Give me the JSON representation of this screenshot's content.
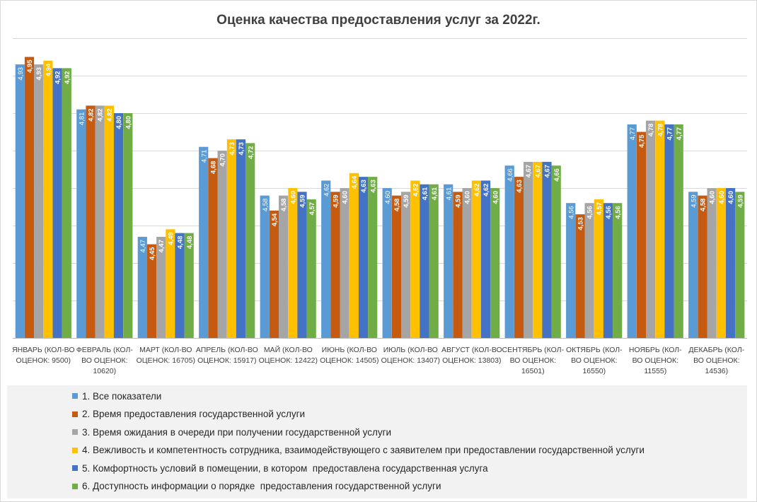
{
  "chart_data": {
    "type": "bar",
    "title": "Оценка качества предоставления услуг за 2022г.",
    "xlabel": "",
    "ylabel": "",
    "ylim": [
      4.2,
      5.0
    ],
    "grid": true,
    "legend_position": "bottom",
    "categories": [
      [
        "ЯНВАРЬ (КОЛ-ВО",
        "ОЦЕНОК: 9500)"
      ],
      [
        "ФЕВРАЛЬ (КОЛ-",
        "ВО ОЦЕНОК:",
        "10620)"
      ],
      [
        "МАРТ (КОЛ-ВО",
        "ОЦЕНОК: 16705)"
      ],
      [
        "АПРЕЛЬ (КОЛ-ВО",
        "ОЦЕНОК: 15917)"
      ],
      [
        "МАЙ (КОЛ-ВО",
        "ОЦЕНОК:   12422)"
      ],
      [
        "ИЮНЬ (КОЛ-ВО",
        "ОЦЕНОК: 14505)"
      ],
      [
        "ИЮЛЬ (КОЛ-ВО",
        "ОЦЕНОК: 13407)"
      ],
      [
        "АВГУСТ (КОЛ-ВО",
        "ОЦЕНОК: 13803)"
      ],
      [
        "СЕНТЯБРЬ (КОЛ-",
        "ВО ОЦЕНОК:",
        "16501)"
      ],
      [
        "ОКТЯБРЬ (КОЛ-",
        "ВО ОЦЕНОК:",
        "16550)"
      ],
      [
        "НОЯБРЬ (КОЛ-",
        "ВО ОЦЕНОК:",
        "11555)"
      ],
      [
        "ДЕКАБРЬ (КОЛ-",
        "ВО ОЦЕНОК:",
        "14536)"
      ]
    ],
    "series": [
      {
        "name": "1. Все показатели",
        "color": "#5B9BD5",
        "values": [
          4.93,
          4.81,
          4.47,
          4.71,
          4.58,
          4.62,
          4.6,
          4.61,
          4.66,
          4.56,
          4.77,
          4.59
        ],
        "labels": [
          "4,93",
          "4,81",
          "4,47",
          "4,71",
          "4,58",
          "4,62",
          "4,60",
          "4,61",
          "4,66",
          "4,56",
          "4,77",
          "4,59"
        ]
      },
      {
        "name": "2. Время предоставления государственной услуги",
        "color": "#C55A11",
        "values": [
          4.95,
          4.82,
          4.45,
          4.68,
          4.54,
          4.59,
          4.58,
          4.59,
          4.63,
          4.53,
          4.75,
          4.58
        ],
        "labels": [
          "4,95",
          "4,82",
          "4,45",
          "4,68",
          "4,54",
          "4,59",
          "4,58",
          "4,59",
          "4,63",
          "4,53",
          "4,75",
          "4,58"
        ]
      },
      {
        "name": "3. Время ожидания в очереди при получении государственной услуги",
        "color": "#A5A5A5",
        "values": [
          4.93,
          4.82,
          4.47,
          4.7,
          4.58,
          4.6,
          4.59,
          4.6,
          4.67,
          4.56,
          4.78,
          4.6
        ],
        "labels": [
          "4,93",
          "4,82",
          "4,47",
          "4,70",
          "4,58",
          "4,60",
          "4,59",
          "4,60",
          "4,67",
          "4,56",
          "4,78",
          "4,60"
        ]
      },
      {
        "name": "4. Вежливость и компетентность сотрудника, взаимодействующего с заявителем при предоставлении государственной услуги",
        "color": "#FFC000",
        "values": [
          4.94,
          4.82,
          4.49,
          4.73,
          4.6,
          4.64,
          4.62,
          4.62,
          4.67,
          4.57,
          4.78,
          4.6
        ],
        "labels": [
          "4,94",
          "4,82",
          "4,49",
          "4,73",
          "4,60",
          "4,64",
          "4,62",
          "4,62",
          "4,67",
          "4,57",
          "4,78",
          "4,60"
        ]
      },
      {
        "name": "5. Комфортность условий в помещении, в котором  предоставлена государственная услуга",
        "color": "#4472C4",
        "values": [
          4.92,
          4.8,
          4.48,
          4.73,
          4.59,
          4.63,
          4.61,
          4.62,
          4.67,
          4.56,
          4.77,
          4.6
        ],
        "labels": [
          "4,92",
          "4,80",
          "4,48",
          "4,73",
          "4,59",
          "4,63",
          "4,61",
          "4,62",
          "4,67",
          "4,56",
          "4,77",
          "4,60"
        ]
      },
      {
        "name": "6. Доступность информации о порядке  предоставления государственной услуги",
        "color": "#70AD47",
        "values": [
          4.92,
          4.8,
          4.48,
          4.72,
          4.57,
          4.63,
          4.61,
          4.6,
          4.66,
          4.56,
          4.77,
          4.59
        ],
        "labels": [
          "4,92",
          "4,80",
          "4,48",
          "4,72",
          "4,57",
          "4,63",
          "4,61",
          "4,60",
          "4,66",
          "4,56",
          "4,77",
          "4,59"
        ]
      }
    ]
  }
}
